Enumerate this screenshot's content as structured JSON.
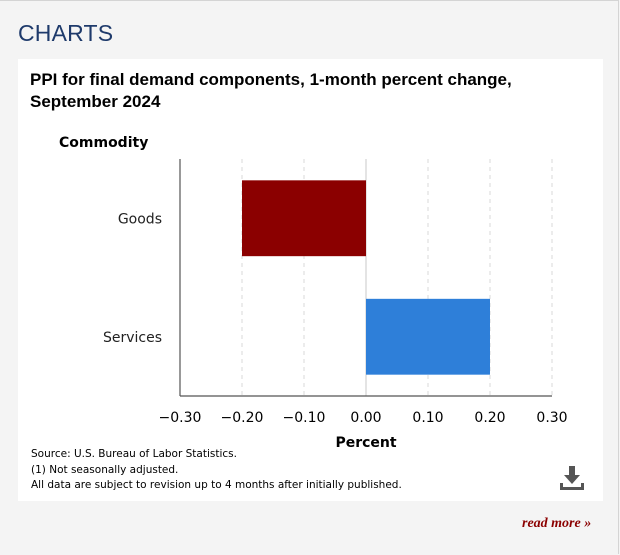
{
  "section": {
    "title": "CHARTS"
  },
  "chart_data": {
    "type": "bar",
    "orientation": "horizontal",
    "title": "PPI for final demand components, 1-month percent change, September 2024",
    "ylabel": "Commodity",
    "xlabel": "Percent",
    "categories": [
      "Goods",
      "Services"
    ],
    "values": [
      -0.2,
      0.2
    ],
    "colors": [
      "#8b0000",
      "#2e7fd9"
    ],
    "xlim": [
      -0.3,
      0.3
    ],
    "xticks": [
      -0.3,
      -0.2,
      -0.1,
      0.0,
      0.1,
      0.2,
      0.3
    ],
    "xtick_labels": [
      "−0.30",
      "−0.20",
      "−0.10",
      "0.00",
      "0.10",
      "0.20",
      "0.30"
    ],
    "grid": true
  },
  "footnotes": {
    "source": "Source: U.S. Bureau of Labor Statistics.",
    "note1": "(1) Not seasonally adjusted.",
    "note2": "All data are subject to revision up to 4 months after initially published."
  },
  "download": {
    "icon": "download-icon"
  },
  "read_more": {
    "label": "read more »"
  }
}
